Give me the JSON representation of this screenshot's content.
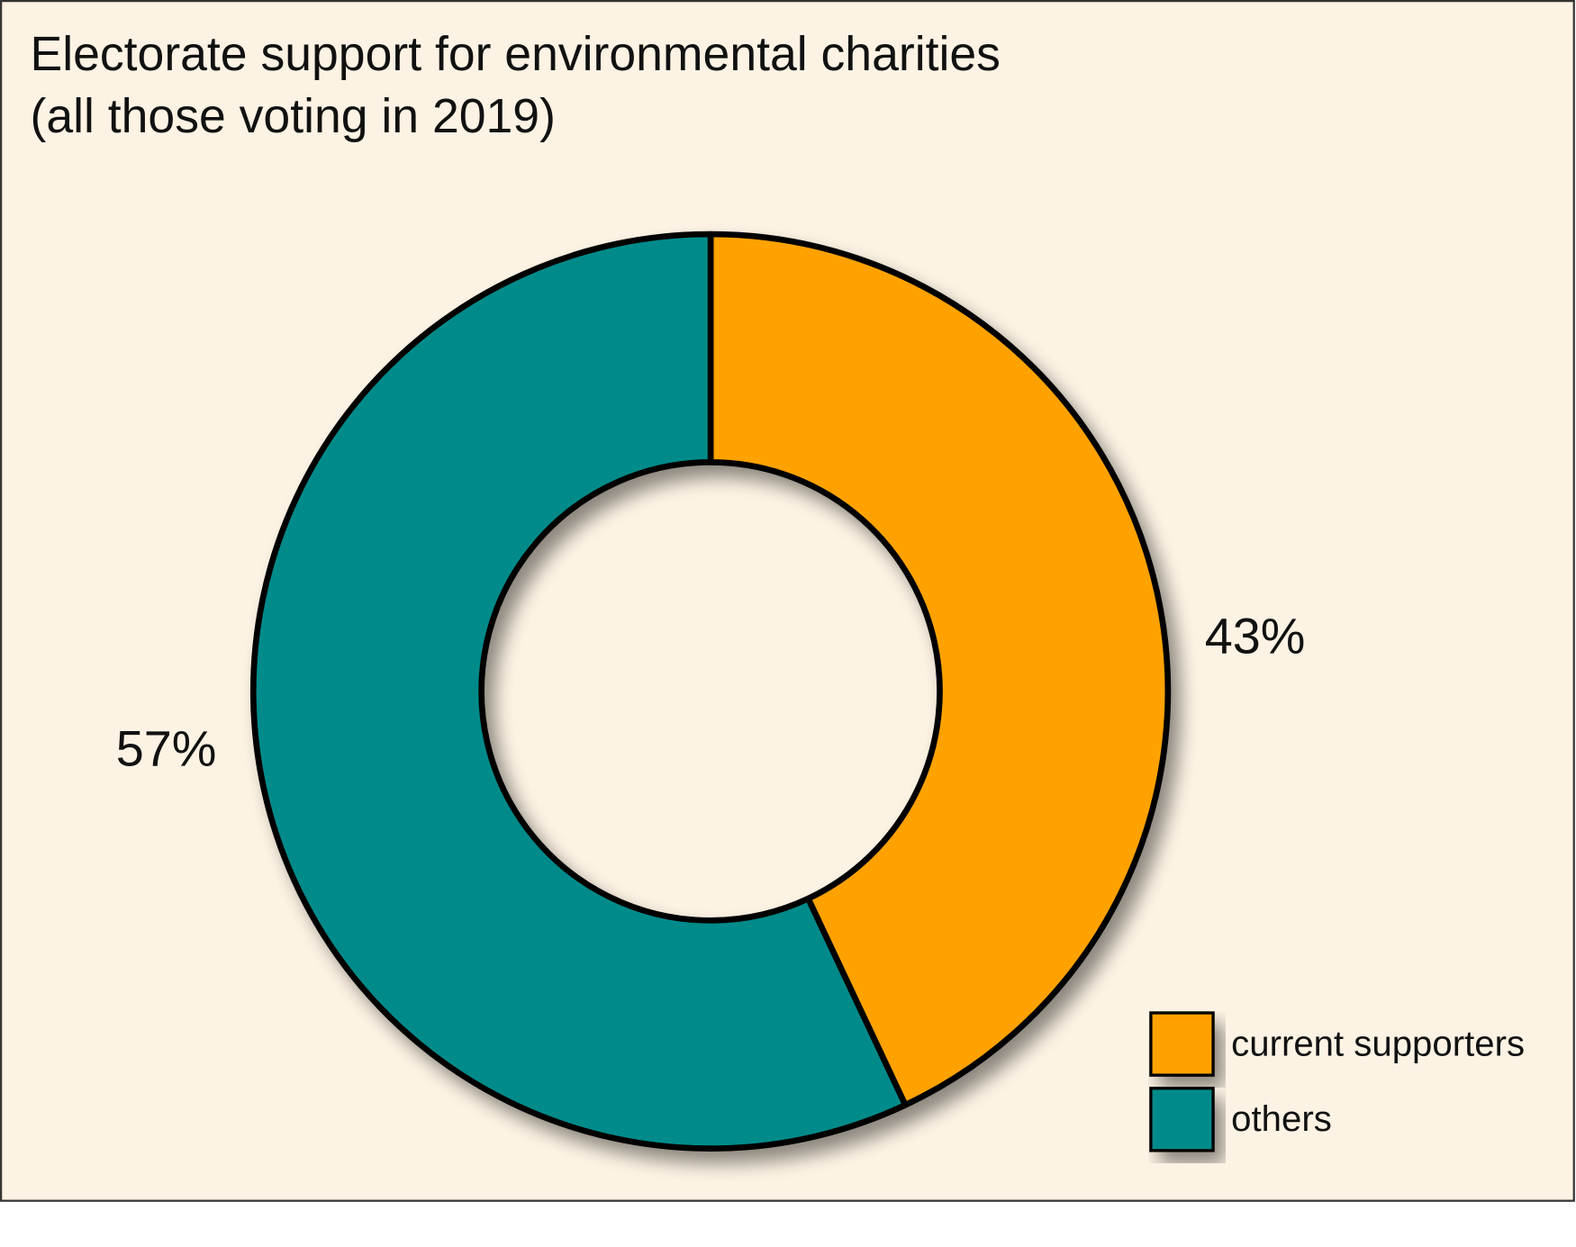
{
  "chart_data": {
    "type": "pie",
    "title": "Electorate support for environmental charities",
    "subtitle": "(all those voting in 2019)",
    "categories": [
      "current supporters",
      "others"
    ],
    "values": [
      43,
      57
    ],
    "value_labels": [
      "43%",
      "57%"
    ],
    "colors": [
      "#ffa200",
      "#008b8a"
    ],
    "legend": "lower right"
  }
}
